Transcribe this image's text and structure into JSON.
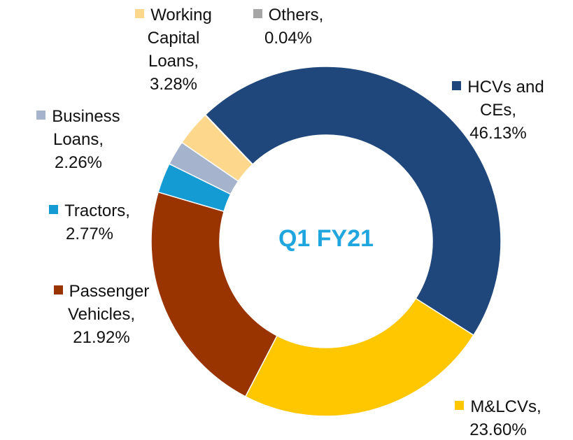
{
  "chart_data": {
    "type": "donut",
    "center_text": "Q1 FY21",
    "categories": [
      "HCVs and CEs,",
      "M&LCVs,",
      "Passenger Vehicles,",
      "Tractors,",
      "Business Loans,",
      "Working Capital Loans,",
      "Others,"
    ],
    "values": [
      46.13,
      23.6,
      21.92,
      2.77,
      2.26,
      3.28,
      0.04
    ],
    "value_labels": [
      "46.13%",
      "23.60%",
      "21.92%",
      "2.77%",
      "2.26%",
      "3.28%",
      "0.04%"
    ],
    "colors": [
      "#1f477b",
      "#ffc700",
      "#993300",
      "#159bd3",
      "#a5b3cc",
      "#fdd88c",
      "#a6a6a6"
    ]
  }
}
